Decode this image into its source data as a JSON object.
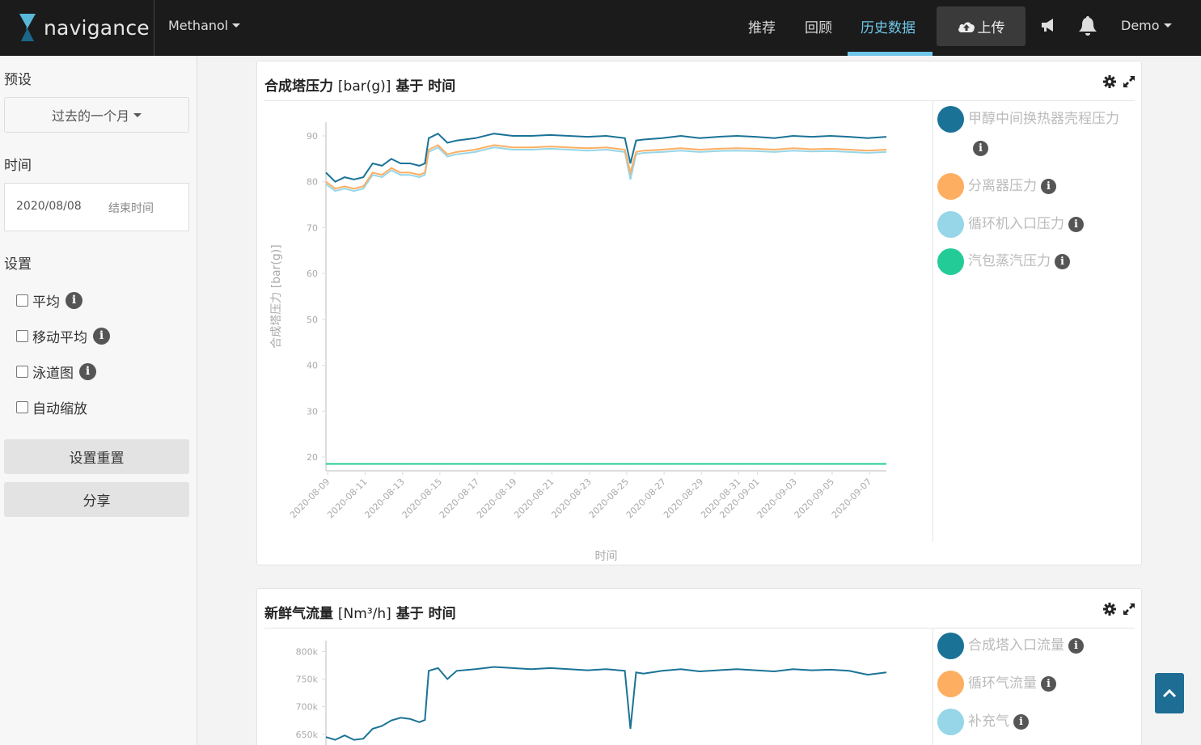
{
  "brand": {
    "name": "navigance",
    "logo_icon": "navigance-logo-icon"
  },
  "navbar": {
    "plant": "Methanol",
    "links": [
      {
        "label": "推荐",
        "active": false
      },
      {
        "label": "回顾",
        "active": false
      },
      {
        "label": "历史数据",
        "active": true
      }
    ],
    "upload_label": "上传",
    "user": "Demo",
    "accent": "#6fc6e8"
  },
  "sidebar": {
    "preset_heading": "预设",
    "preset_value": "过去的一个月",
    "time_heading": "时间",
    "date_start": "2020/08/08",
    "date_end_placeholder": "结束时间",
    "settings_heading": "设置",
    "options": [
      {
        "label": "平均",
        "checked": false,
        "info": true
      },
      {
        "label": "移动平均",
        "checked": false,
        "info": true
      },
      {
        "label": "泳道图",
        "checked": false,
        "info": true
      },
      {
        "label": "自动缩放",
        "checked": false,
        "info": false
      }
    ],
    "reset_label": "设置重置",
    "share_label": "分享"
  },
  "charts": [
    {
      "title_bold": "合成塔压力",
      "title_unit": "[bar(g)]",
      "title_suffix": "基于 时间",
      "legend": [
        {
          "name": "甲醇中间换热器壳程压力",
          "color": "#1a7396"
        },
        {
          "name": "分离器压力",
          "color": "#fdae61"
        },
        {
          "name": "循环机入口压力",
          "color": "#96d6e8"
        },
        {
          "name": "汽包蒸汽压力",
          "color": "#23cc97"
        }
      ],
      "chart_data": {
        "type": "line",
        "xlabel": "时间",
        "ylabel": "合成塔压力 [bar(g)]",
        "ylim": [
          17,
          93
        ],
        "yticks": [
          20,
          30,
          40,
          50,
          60,
          70,
          80,
          90
        ],
        "xticks": [
          "2020-08-09",
          "2020-08-11",
          "2020-08-13",
          "2020-08-15",
          "2020-08-17",
          "2020-08-19",
          "2020-08-21",
          "2020-08-23",
          "2020-08-25",
          "2020-08-27",
          "2020-08-29",
          "2020-08-31",
          "2020-09-01",
          "2020-09-03",
          "2020-09-05",
          "2020-09-07"
        ],
        "x_days": [
          0,
          0.5,
          1,
          1.5,
          2,
          2.5,
          3,
          3.5,
          4,
          4.5,
          5,
          5.3,
          5.5,
          6,
          6.5,
          7,
          8,
          9,
          10,
          11,
          12,
          13,
          14,
          15,
          16,
          16.3,
          16.6,
          17,
          18,
          19,
          20,
          21,
          22,
          23,
          24,
          25,
          26,
          27,
          28,
          29,
          30
        ],
        "series": [
          {
            "name": "甲醇中间换热器壳程压力",
            "values": [
              82,
              80,
              81,
              80.5,
              81,
              84,
              83.5,
              85,
              84,
              84,
              83.5,
              84,
              89.5,
              90.5,
              88.5,
              89,
              89.5,
              90.5,
              90,
              90,
              90.2,
              90,
              89.8,
              90,
              89.5,
              84,
              89,
              89.2,
              89.5,
              90,
              89.5,
              89.8,
              90,
              89.8,
              89.5,
              90,
              89.8,
              90,
              89.8,
              89.5,
              89.8
            ]
          },
          {
            "name": "分离器压力",
            "values": [
              80,
              78.5,
              79,
              78.5,
              79,
              82,
              81.5,
              83,
              82,
              82,
              81.5,
              82,
              87,
              88,
              86,
              86.5,
              87,
              88,
              87.5,
              87.5,
              87.7,
              87.5,
              87.3,
              87.5,
              87,
              82,
              86.5,
              86.8,
              87,
              87.3,
              87,
              87.2,
              87.3,
              87.2,
              87,
              87.3,
              87.1,
              87.2,
              87,
              86.8,
              87
            ]
          },
          {
            "name": "循环机入口压力",
            "values": [
              79.5,
              78,
              78.5,
              78,
              78.5,
              81.5,
              81,
              82.5,
              81.5,
              81.5,
              81,
              81.5,
              86.5,
              87.5,
              85.5,
              86,
              86.5,
              87.5,
              87,
              87,
              87.2,
              87,
              86.8,
              87,
              86.5,
              80.5,
              86,
              86.3,
              86.5,
              86.8,
              86.5,
              86.7,
              86.8,
              86.7,
              86.5,
              86.8,
              86.6,
              86.7,
              86.5,
              86.3,
              86.5
            ]
          },
          {
            "name": "汽包蒸汽压力",
            "values": [
              18.5,
              18.5,
              18.5,
              18.5,
              18.5,
              18.5,
              18.5,
              18.5,
              18.5,
              18.5,
              18.5,
              18.5,
              18.5,
              18.5,
              18.5,
              18.5,
              18.5,
              18.5,
              18.5,
              18.5,
              18.5,
              18.5,
              18.5,
              18.5,
              18.5,
              18.5,
              18.5,
              18.5,
              18.5,
              18.5,
              18.5,
              18.5,
              18.5,
              18.5,
              18.5,
              18.5,
              18.5,
              18.5,
              18.5,
              18.5,
              18.5
            ]
          }
        ]
      }
    },
    {
      "title_bold": "新鲜气流量",
      "title_unit": "[Nm³/h]",
      "title_suffix": "基于 时间",
      "legend": [
        {
          "name": "合成塔入口流量",
          "color": "#1a7396"
        },
        {
          "name": "循环气流量",
          "color": "#fdae61"
        },
        {
          "name": "补充气",
          "color": "#96d6e8"
        }
      ],
      "chart_data": {
        "type": "line",
        "ylim": [
          635000,
          805000
        ],
        "yticks": [
          650000,
          700000,
          750000,
          800000
        ],
        "ytick_labels": [
          "650k",
          "700k",
          "750k",
          "800k"
        ],
        "x_days": [
          0,
          0.5,
          1,
          1.5,
          2,
          2.5,
          3,
          3.5,
          4,
          4.5,
          5,
          5.3,
          5.5,
          6,
          6.5,
          7,
          8,
          9,
          10,
          11,
          12,
          13,
          14,
          15,
          16,
          16.3,
          16.6,
          17,
          18,
          19,
          20,
          21,
          22,
          23,
          24,
          25,
          26,
          27,
          28,
          29,
          30
        ],
        "series": [
          {
            "name": "合成塔入口流量",
            "values": [
              645000,
              640000,
              648000,
              640000,
              642000,
              660000,
              665000,
              675000,
              680000,
              678000,
              672000,
              676000,
              765000,
              770000,
              750000,
              765000,
              768000,
              772000,
              770000,
              768000,
              770000,
              768000,
              766000,
              768000,
              765000,
              660000,
              762000,
              760000,
              765000,
              768000,
              764000,
              766000,
              768000,
              766000,
              764000,
              768000,
              766000,
              767000,
              765000,
              758000,
              762000
            ]
          }
        ]
      }
    }
  ]
}
